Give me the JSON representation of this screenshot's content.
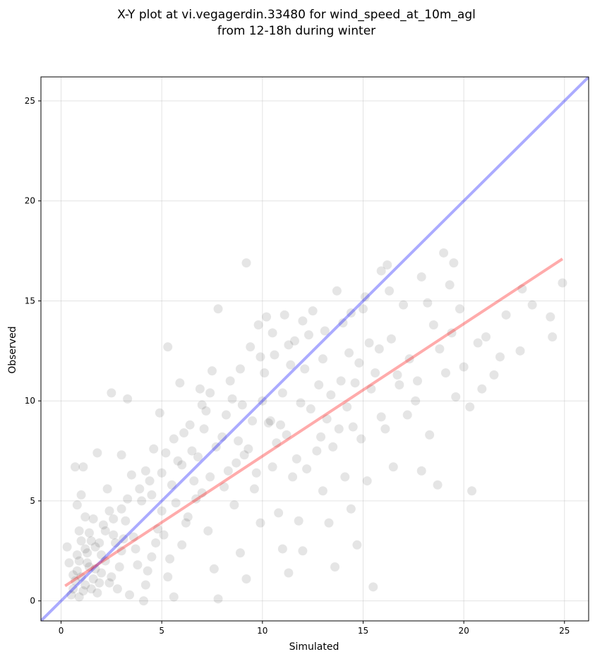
{
  "chart_data": {
    "type": "scatter",
    "title_line1": "X-Y plot at vi.vegagerdin.33480 for wind_speed_at_10m_agl",
    "title_line2": "from 12-18h during winter",
    "xlabel": "Simulated",
    "ylabel": "Observed",
    "xlim": [
      -1.0,
      26.2
    ],
    "ylim": [
      -1.0,
      26.2
    ],
    "xticks": [
      0,
      5,
      10,
      15,
      20,
      25
    ],
    "yticks": [
      0,
      5,
      10,
      15,
      20,
      25
    ],
    "grid": true,
    "point_color": "#000000",
    "point_alpha": 0.1,
    "identity_line": {
      "x": [
        -1.0,
        26.2
      ],
      "y": [
        -1.0,
        26.2
      ],
      "color": "#0000ff"
    },
    "fit_line": {
      "x": [
        0.2,
        24.9
      ],
      "y": [
        0.75,
        17.1
      ],
      "color": "#ff0000"
    },
    "points": [
      [
        0.8,
        1.5
      ],
      [
        1.0,
        1.2
      ],
      [
        1.2,
        0.8
      ],
      [
        0.9,
        2.0
      ],
      [
        1.4,
        1.7
      ],
      [
        1.1,
        0.5
      ],
      [
        0.7,
        1.0
      ],
      [
        1.6,
        1.1
      ],
      [
        1.3,
        2.4
      ],
      [
        0.6,
        0.6
      ],
      [
        1.8,
        0.4
      ],
      [
        2.0,
        1.4
      ],
      [
        1.5,
        3.0
      ],
      [
        0.9,
        3.5
      ],
      [
        1.2,
        4.2
      ],
      [
        0.8,
        4.8
      ],
      [
        1.0,
        5.3
      ],
      [
        1.7,
        2.7
      ],
      [
        2.2,
        2.0
      ],
      [
        2.5,
        1.2
      ],
      [
        2.8,
        0.6
      ],
      [
        3.0,
        2.5
      ],
      [
        2.6,
        3.3
      ],
      [
        2.4,
        4.5
      ],
      [
        3.2,
        4.0
      ],
      [
        3.6,
        3.2
      ],
      [
        3.8,
        1.8
      ],
      [
        4.2,
        0.8
      ],
      [
        4.5,
        2.2
      ],
      [
        4.8,
        3.6
      ],
      [
        4.0,
        5.0
      ],
      [
        4.4,
        6.0
      ],
      [
        3.5,
        6.3
      ],
      [
        3.0,
        7.3
      ],
      [
        1.8,
        7.4
      ],
      [
        0.7,
        6.7
      ],
      [
        1.1,
        6.7
      ],
      [
        2.5,
        10.4
      ],
      [
        3.3,
        10.1
      ],
      [
        5.0,
        4.5
      ],
      [
        5.3,
        1.2
      ],
      [
        5.6,
        0.2
      ],
      [
        6.0,
        2.8
      ],
      [
        6.3,
        4.2
      ],
      [
        5.5,
        5.8
      ],
      [
        6.0,
        6.8
      ],
      [
        6.4,
        8.8
      ],
      [
        5.9,
        10.9
      ],
      [
        5.3,
        12.7
      ],
      [
        6.8,
        7.2
      ],
      [
        7.0,
        5.4
      ],
      [
        7.3,
        3.5
      ],
      [
        7.6,
        1.6
      ],
      [
        7.8,
        0.1
      ],
      [
        6.9,
        10.6
      ],
      [
        7.2,
        9.5
      ],
      [
        7.5,
        11.5
      ],
      [
        7.8,
        14.6
      ],
      [
        8.0,
        8.2
      ],
      [
        8.3,
        6.5
      ],
      [
        8.6,
        4.8
      ],
      [
        8.9,
        2.4
      ],
      [
        9.2,
        1.1
      ],
      [
        8.5,
        10.1
      ],
      [
        9.0,
        9.8
      ],
      [
        9.3,
        7.6
      ],
      [
        9.6,
        5.6
      ],
      [
        9.9,
        3.9
      ],
      [
        9.4,
        12.7
      ],
      [
        9.2,
        16.9
      ],
      [
        9.8,
        13.8
      ],
      [
        10.1,
        11.4
      ],
      [
        10.3,
        8.9
      ],
      [
        10.5,
        6.7
      ],
      [
        10.8,
        4.4
      ],
      [
        11.0,
        2.6
      ],
      [
        11.3,
        1.4
      ],
      [
        10.2,
        14.2
      ],
      [
        10.6,
        12.3
      ],
      [
        11.0,
        10.4
      ],
      [
        11.2,
        8.3
      ],
      [
        11.5,
        6.2
      ],
      [
        11.8,
        4.0
      ],
      [
        12.0,
        2.5
      ],
      [
        11.1,
        14.3
      ],
      [
        11.6,
        13.0
      ],
      [
        12.1,
        11.6
      ],
      [
        12.4,
        9.6
      ],
      [
        12.7,
        7.5
      ],
      [
        13.0,
        5.5
      ],
      [
        13.3,
        3.9
      ],
      [
        13.6,
        1.7
      ],
      [
        12.5,
        14.5
      ],
      [
        13.0,
        12.1
      ],
      [
        13.4,
        10.3
      ],
      [
        13.8,
        8.6
      ],
      [
        14.1,
        6.2
      ],
      [
        14.4,
        4.6
      ],
      [
        14.7,
        2.8
      ],
      [
        13.7,
        15.5
      ],
      [
        14.0,
        13.9
      ],
      [
        14.3,
        12.4
      ],
      [
        14.6,
        10.9
      ],
      [
        14.9,
        8.1
      ],
      [
        15.2,
        6.0
      ],
      [
        15.5,
        0.7
      ],
      [
        15.0,
        14.6
      ],
      [
        15.3,
        12.9
      ],
      [
        15.6,
        11.4
      ],
      [
        15.9,
        9.2
      ],
      [
        16.2,
        16.8
      ],
      [
        15.9,
        16.5
      ],
      [
        16.4,
        13.1
      ],
      [
        16.7,
        11.3
      ],
      [
        17.0,
        14.8
      ],
      [
        17.3,
        12.1
      ],
      [
        17.6,
        10.0
      ],
      [
        17.9,
        16.2
      ],
      [
        18.2,
        14.9
      ],
      [
        18.5,
        13.8
      ],
      [
        17.9,
        6.5
      ],
      [
        18.7,
        5.8
      ],
      [
        18.3,
        8.3
      ],
      [
        19.0,
        17.4
      ],
      [
        19.3,
        15.8
      ],
      [
        19.5,
        16.9
      ],
      [
        19.8,
        14.6
      ],
      [
        19.1,
        11.4
      ],
      [
        19.6,
        10.2
      ],
      [
        20.0,
        11.7
      ],
      [
        20.3,
        9.7
      ],
      [
        20.4,
        5.5
      ],
      [
        20.7,
        12.9
      ],
      [
        21.1,
        13.2
      ],
      [
        21.5,
        11.3
      ],
      [
        22.8,
        12.5
      ],
      [
        22.9,
        15.6
      ],
      [
        23.4,
        14.8
      ],
      [
        24.3,
        14.2
      ],
      [
        24.4,
        13.2
      ],
      [
        24.9,
        15.9
      ],
      [
        0.5,
        0.3
      ],
      [
        0.3,
        2.7
      ],
      [
        0.4,
        1.9
      ],
      [
        1.9,
        0.9
      ],
      [
        2.1,
        3.8
      ],
      [
        2.3,
        5.6
      ],
      [
        2.7,
        2.9
      ],
      [
        3.4,
        0.3
      ],
      [
        4.1,
        0.0
      ],
      [
        4.6,
        7.6
      ],
      [
        4.9,
        9.4
      ],
      [
        5.8,
        7.0
      ],
      [
        6.6,
        6.0
      ],
      [
        7.1,
        8.6
      ],
      [
        7.7,
        7.7
      ],
      [
        8.2,
        9.3
      ],
      [
        8.8,
        8.0
      ],
      [
        9.5,
        9.0
      ],
      [
        10.0,
        10.0
      ],
      [
        10.4,
        9.0
      ],
      [
        10.9,
        8.8
      ],
      [
        11.4,
        11.8
      ],
      [
        11.9,
        9.9
      ],
      [
        12.3,
        13.3
      ],
      [
        12.8,
        10.8
      ],
      [
        13.2,
        9.1
      ],
      [
        13.9,
        11.0
      ],
      [
        14.2,
        9.7
      ],
      [
        14.8,
        11.9
      ],
      [
        16.1,
        8.6
      ],
      [
        16.5,
        6.7
      ],
      [
        17.2,
        9.3
      ],
      [
        18.8,
        12.6
      ],
      [
        19.4,
        13.4
      ],
      [
        20.9,
        10.6
      ],
      [
        21.8,
        12.2
      ],
      [
        22.1,
        14.3
      ],
      [
        0.6,
        1.3
      ],
      [
        0.9,
        0.2
      ],
      [
        1.3,
        1.9
      ],
      [
        1.5,
        0.6
      ],
      [
        1.7,
        1.6
      ],
      [
        2.0,
        2.3
      ],
      [
        2.4,
        0.9
      ],
      [
        2.9,
        1.7
      ],
      [
        3.1,
        3.1
      ],
      [
        3.7,
        2.6
      ],
      [
        4.3,
        1.5
      ],
      [
        4.7,
        2.9
      ],
      [
        5.1,
        3.3
      ],
      [
        5.4,
        2.1
      ],
      [
        5.7,
        4.9
      ],
      [
        6.2,
        3.9
      ],
      [
        6.7,
        5.1
      ],
      [
        7.4,
        6.2
      ],
      [
        8.1,
        5.7
      ],
      [
        8.7,
        6.9
      ],
      [
        9.1,
        7.3
      ],
      [
        9.7,
        6.4
      ],
      [
        10.7,
        7.9
      ],
      [
        11.7,
        7.1
      ],
      [
        12.2,
        6.6
      ],
      [
        12.9,
        8.2
      ],
      [
        13.5,
        7.7
      ],
      [
        14.5,
        8.7
      ],
      [
        15.4,
        10.6
      ],
      [
        15.8,
        12.6
      ],
      [
        16.8,
        10.8
      ],
      [
        17.7,
        11.0
      ],
      [
        0.8,
        2.3
      ],
      [
        1.0,
        3.0
      ],
      [
        1.2,
        2.6
      ],
      [
        1.4,
        3.4
      ],
      [
        1.6,
        4.1
      ],
      [
        1.9,
        2.9
      ],
      [
        2.2,
        3.5
      ],
      [
        2.6,
        4.1
      ],
      [
        3.0,
        4.6
      ],
      [
        3.3,
        5.1
      ],
      [
        3.9,
        5.6
      ],
      [
        4.2,
        6.5
      ],
      [
        4.5,
        5.3
      ],
      [
        5.0,
        6.4
      ],
      [
        5.2,
        7.4
      ],
      [
        5.6,
        8.1
      ],
      [
        6.1,
        8.4
      ],
      [
        6.5,
        7.5
      ],
      [
        7.0,
        9.8
      ],
      [
        7.4,
        10.4
      ],
      [
        8.4,
        11.0
      ],
      [
        8.9,
        11.6
      ],
      [
        9.9,
        12.2
      ],
      [
        10.5,
        13.4
      ],
      [
        11.3,
        12.8
      ],
      [
        12.0,
        14.0
      ],
      [
        13.1,
        13.5
      ],
      [
        14.4,
        14.4
      ],
      [
        15.1,
        15.2
      ],
      [
        16.3,
        15.5
      ]
    ]
  }
}
